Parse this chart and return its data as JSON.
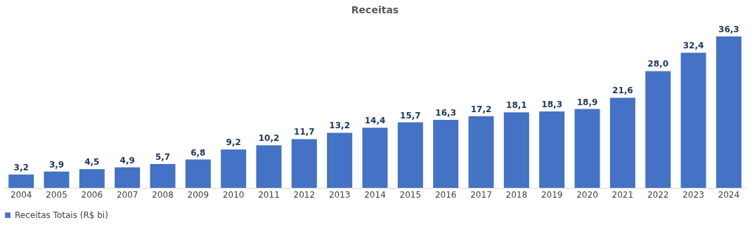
{
  "chart_data": {
    "type": "bar",
    "title": "Receitas",
    "categories": [
      "2004",
      "2005",
      "2006",
      "2007",
      "2008",
      "2009",
      "2010",
      "2011",
      "2012",
      "2013",
      "2014",
      "2015",
      "2016",
      "2017",
      "2018",
      "2019",
      "2020",
      "2021",
      "2022",
      "2023",
      "2024"
    ],
    "series": [
      {
        "name": "Receitas Totais (R$ bi)",
        "color": "#4472c4",
        "values": [
          3.2,
          3.9,
          4.5,
          4.9,
          5.7,
          6.8,
          9.2,
          10.2,
          11.7,
          13.2,
          14.4,
          15.7,
          16.3,
          17.2,
          18.1,
          18.3,
          18.9,
          21.6,
          28.0,
          32.4,
          36.3
        ],
        "value_labels": [
          "3,2",
          "3,9",
          "4,5",
          "4,9",
          "5,7",
          "6,8",
          "9,2",
          "10,2",
          "11,7",
          "13,2",
          "14,4",
          "15,7",
          "16,3",
          "17,2",
          "18,1",
          "18,3",
          "18,9",
          "21,6",
          "28,0",
          "32,4",
          "36,3"
        ]
      }
    ],
    "legend": "bottom",
    "grid": false
  }
}
